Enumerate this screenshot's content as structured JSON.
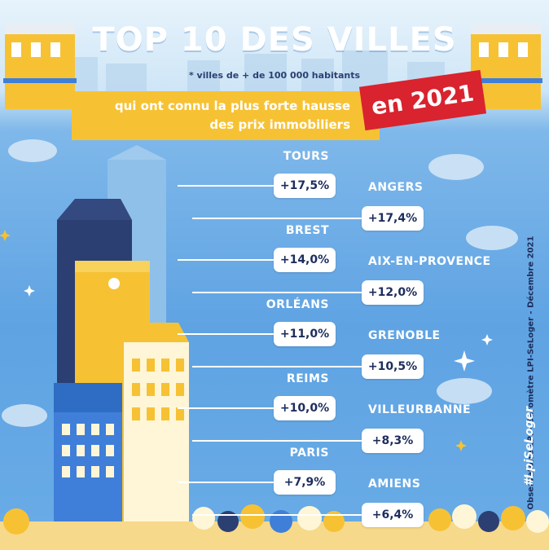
{
  "header": {
    "title": "TOP 10 DES VILLES",
    "footnote": "* villes de + de 100 000 habitants",
    "banner_line1": "qui ont connu la plus forte hausse",
    "banner_line2": "des prix immobiliers",
    "year_badge": "en 2021"
  },
  "side": {
    "source": "Observatoire LPI - Baromètre LPI-SeLoger - Décembre 2021",
    "hashtag": "#LpiSeLoger"
  },
  "colors": {
    "sky": "#5fa3e3",
    "banner_yellow": "#f6c234",
    "badge_red": "#d9232e",
    "pill_text": "#1d2d5c",
    "building_yellow": "#f6c234",
    "building_navy": "#2b3f73",
    "building_blue": "#3f7fd9"
  },
  "chart_data": {
    "type": "bar",
    "categories": [
      "TOURS",
      "ANGERS",
      "BREST",
      "AIX-EN-PROVENCE",
      "ORLÉANS",
      "GRENOBLE",
      "REIMS",
      "VILLEURBANNE",
      "PARIS",
      "AMIENS"
    ],
    "values": [
      17.5,
      17.4,
      14.0,
      12.0,
      11.0,
      10.5,
      10.0,
      8.3,
      7.9,
      6.4
    ],
    "value_labels": [
      "+17,5%",
      "+17,4%",
      "+14,0%",
      "+12,0%",
      "+11,0%",
      "+10,5%",
      "+10,0%",
      "+8,3%",
      "+7,9%",
      "+6,4%"
    ],
    "unit": "%"
  }
}
